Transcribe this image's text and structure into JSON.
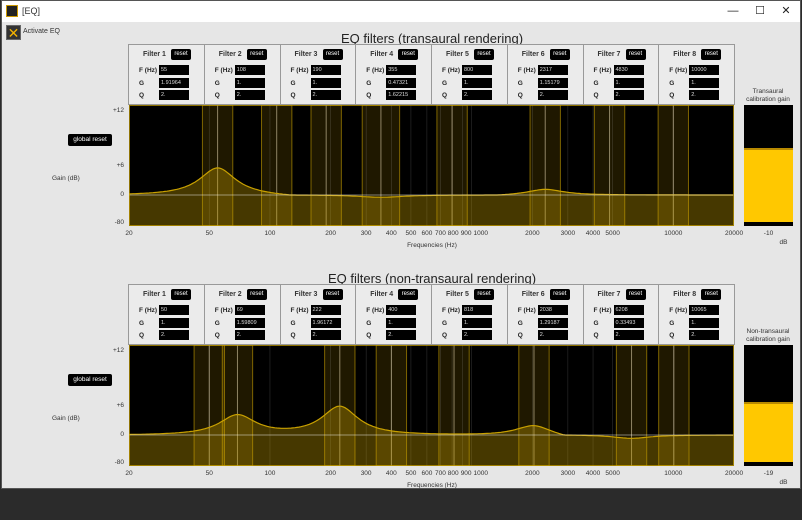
{
  "window": {
    "title": "[EQ]",
    "minimize": "—",
    "maximize": "☐",
    "close": "✕"
  },
  "activate": {
    "label": "Activate  EQ",
    "icon": "x-icon",
    "checked": true
  },
  "colors": {
    "accent": "#ffc800",
    "plot_bg": "#000000",
    "curve": "#c8a000"
  },
  "sections": [
    {
      "title": "EQ filters (transaural rendering)",
      "global_reset": "global reset",
      "gain_axis_label": "Gain (dB)",
      "x_axis_label": "Frequencies (Hz)",
      "y_ticks": [
        "+12",
        "+6",
        "0",
        "-80"
      ],
      "calibration": {
        "label": "Transaural calibration gain",
        "value": "-10",
        "unit": "dB",
        "level": 0.63
      },
      "filters": [
        {
          "name": "Filter 1",
          "reset": "reset",
          "f": "55",
          "g": "1.91964",
          "q": "2."
        },
        {
          "name": "Filter 2",
          "reset": "reset",
          "f": "108",
          "g": "1.",
          "q": "2."
        },
        {
          "name": "Filter 3",
          "reset": "reset",
          "f": "190",
          "g": "1.",
          "q": "2."
        },
        {
          "name": "Filter 4",
          "reset": "reset",
          "f": "355",
          "g": "0.47321",
          "q": "1.62215"
        },
        {
          "name": "Filter 5",
          "reset": "reset",
          "f": "800",
          "g": "1.",
          "q": "2."
        },
        {
          "name": "Filter 6",
          "reset": "reset",
          "f": "2317",
          "g": "1.15179",
          "q": "2."
        },
        {
          "name": "Filter 7",
          "reset": "reset",
          "f": "4830",
          "g": "1.",
          "q": "2."
        },
        {
          "name": "Filter 8",
          "reset": "reset",
          "f": "10000",
          "g": "1.",
          "q": "2."
        }
      ]
    },
    {
      "title": "EQ filters (non-transaural rendering)",
      "global_reset": "global reset",
      "gain_axis_label": "Gain (dB)",
      "x_axis_label": "Frequencies (Hz)",
      "y_ticks": [
        "+12",
        "+6",
        "0",
        "-80"
      ],
      "calibration": {
        "label": "Non-transaural calibration gain",
        "value": "-19",
        "unit": "dB",
        "level": 0.51
      },
      "filters": [
        {
          "name": "Filter 1",
          "reset": "reset",
          "f": "50",
          "g": "1.",
          "q": "2."
        },
        {
          "name": "Filter 2",
          "reset": "reset",
          "f": "69",
          "g": "1.59809",
          "q": "2."
        },
        {
          "name": "Filter 3",
          "reset": "reset",
          "f": "222",
          "g": "1.96172",
          "q": "2."
        },
        {
          "name": "Filter 4",
          "reset": "reset",
          "f": "400",
          "g": "1.",
          "q": "2."
        },
        {
          "name": "Filter 5",
          "reset": "reset",
          "f": "818",
          "g": "1.",
          "q": "2."
        },
        {
          "name": "Filter 6",
          "reset": "reset",
          "f": "2038",
          "g": "1.29187",
          "q": "2."
        },
        {
          "name": "Filter 7",
          "reset": "reset",
          "f": "6208",
          "g": "0.33493",
          "q": "2."
        },
        {
          "name": "Filter 8",
          "reset": "reset",
          "f": "10065",
          "g": "1.",
          "q": "2."
        }
      ]
    }
  ],
  "labels": {
    "f": "F (Hz)",
    "g": "G",
    "q": "Q"
  },
  "x_ticks": [
    "20",
    "50",
    "100",
    "200",
    "300",
    "400",
    "500",
    "600",
    "700",
    "800",
    "900",
    "1000",
    "2000",
    "3000",
    "4000",
    "5000",
    "10000",
    "20000"
  ]
}
